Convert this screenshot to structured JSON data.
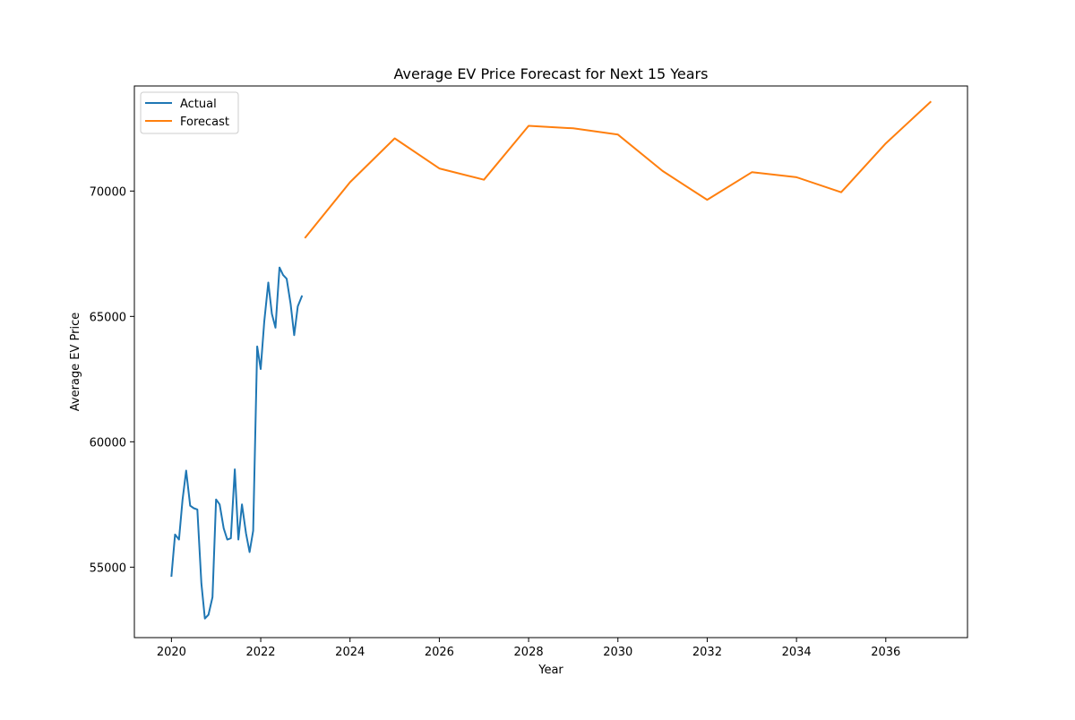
{
  "chart_data": {
    "type": "line",
    "title": "Average EV Price Forecast for Next 15 Years",
    "xlabel": "Year",
    "ylabel": "Average EV Price",
    "xlim": [
      2019.17,
      2037.83
    ],
    "ylim": [
      52190,
      74190
    ],
    "x_ticks": [
      2020,
      2022,
      2024,
      2026,
      2028,
      2030,
      2032,
      2034,
      2036
    ],
    "y_ticks": [
      55000,
      60000,
      65000,
      70000
    ],
    "grid": false,
    "legend_position": "upper left",
    "colors": {
      "Actual": "#1f77b4",
      "Forecast": "#ff7f0e"
    },
    "series": [
      {
        "name": "Actual",
        "points": [
          [
            2020.0,
            54650
          ],
          [
            2020.08,
            56300
          ],
          [
            2020.17,
            56100
          ],
          [
            2020.25,
            57700
          ],
          [
            2020.33,
            58850
          ],
          [
            2020.42,
            57450
          ],
          [
            2020.5,
            57350
          ],
          [
            2020.58,
            57300
          ],
          [
            2020.67,
            54350
          ],
          [
            2020.75,
            52950
          ],
          [
            2020.83,
            53100
          ],
          [
            2020.92,
            53800
          ],
          [
            2021.0,
            57700
          ],
          [
            2021.08,
            57500
          ],
          [
            2021.17,
            56550
          ],
          [
            2021.25,
            56100
          ],
          [
            2021.33,
            56150
          ],
          [
            2021.42,
            58900
          ],
          [
            2021.5,
            56100
          ],
          [
            2021.58,
            57500
          ],
          [
            2021.67,
            56350
          ],
          [
            2021.75,
            55600
          ],
          [
            2021.83,
            56450
          ],
          [
            2021.92,
            63800
          ],
          [
            2022.0,
            62900
          ],
          [
            2022.08,
            64800
          ],
          [
            2022.17,
            66350
          ],
          [
            2022.25,
            65100
          ],
          [
            2022.33,
            64550
          ],
          [
            2022.42,
            66950
          ],
          [
            2022.5,
            66650
          ],
          [
            2022.58,
            66500
          ],
          [
            2022.67,
            65500
          ],
          [
            2022.75,
            64250
          ],
          [
            2022.83,
            65400
          ],
          [
            2022.92,
            65800
          ]
        ]
      },
      {
        "name": "Forecast",
        "points": [
          [
            2023,
            68150
          ],
          [
            2024,
            70350
          ],
          [
            2025,
            72100
          ],
          [
            2026,
            70900
          ],
          [
            2027,
            70450
          ],
          [
            2028,
            72600
          ],
          [
            2029,
            72500
          ],
          [
            2030,
            72250
          ],
          [
            2031,
            70800
          ],
          [
            2032,
            69650
          ],
          [
            2033,
            70750
          ],
          [
            2034,
            70550
          ],
          [
            2035,
            69950
          ],
          [
            2036,
            71900
          ],
          [
            2037,
            73550
          ]
        ]
      }
    ]
  }
}
